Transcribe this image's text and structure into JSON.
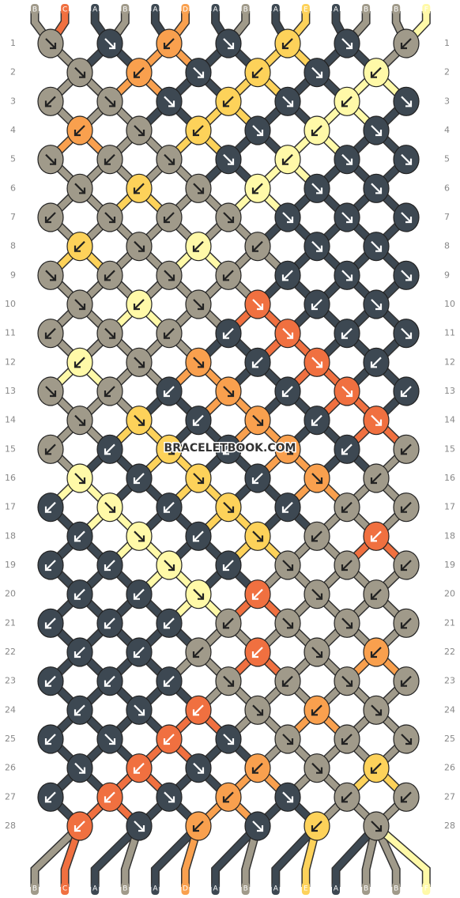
{
  "top_strands": [
    "B",
    "C",
    "A",
    "B",
    "A",
    "D",
    "A",
    "B",
    "A",
    "E",
    "A",
    "B",
    "B",
    "F"
  ],
  "bottom_strands": [
    "B",
    "C",
    "A",
    "B",
    "A",
    "D",
    "A",
    "B",
    "A",
    "E",
    "A",
    "B",
    "B",
    "F"
  ],
  "rows": [
    1,
    2,
    3,
    4,
    5,
    6,
    7,
    8,
    9,
    10,
    11,
    12,
    13,
    14,
    15,
    16,
    17,
    18,
    19,
    20,
    21,
    22,
    23,
    24,
    25,
    26,
    27,
    28
  ],
  "watermark": "BRACELETBOOK.COM"
}
